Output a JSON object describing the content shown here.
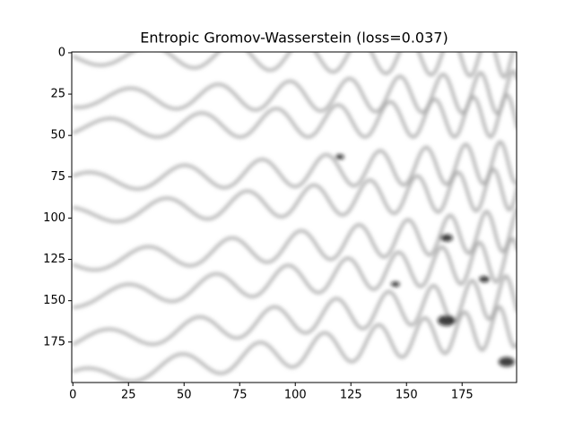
{
  "chart_data": {
    "type": "image",
    "title": "Entropic Gromov-Wasserstein (loss=0.037)",
    "xlim": [
      -0.5,
      199.5
    ],
    "ylim": [
      199.5,
      -0.5
    ],
    "xticks": [
      0,
      25,
      50,
      75,
      100,
      125,
      150,
      175
    ],
    "yticks": [
      0,
      25,
      50,
      75,
      100,
      125,
      150,
      175
    ],
    "colormap": "gray_r"
  }
}
